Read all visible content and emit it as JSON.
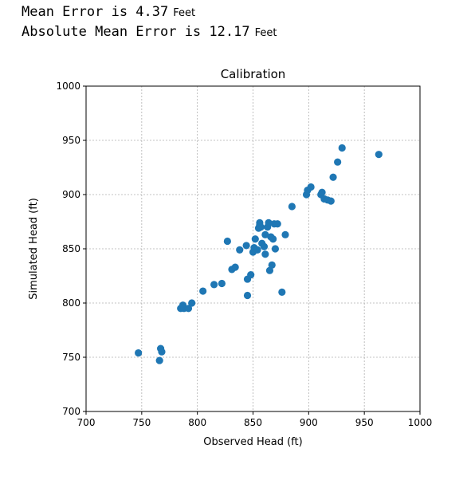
{
  "stats": {
    "mean_error_text": "Mean Error is 4.37",
    "mean_error_unit": "Feet",
    "abs_mean_error_text": "Absolute Mean Error is 12.17",
    "abs_mean_error_unit": "Feet"
  },
  "chart_data": {
    "type": "scatter",
    "title": "Calibration",
    "xlabel": "Observed Head (ft)",
    "ylabel": "Simulated Head (ft)",
    "xlim": [
      700,
      1000
    ],
    "ylim": [
      700,
      1000
    ],
    "xticks": [
      700,
      750,
      800,
      850,
      900,
      950,
      1000
    ],
    "yticks": [
      700,
      750,
      800,
      850,
      900,
      950,
      1000
    ],
    "grid": true,
    "marker_color": "#1f77b4",
    "points": [
      [
        747,
        754
      ],
      [
        766,
        747
      ],
      [
        767,
        758
      ],
      [
        768,
        755
      ],
      [
        785,
        795
      ],
      [
        787,
        798
      ],
      [
        788,
        795
      ],
      [
        792,
        795
      ],
      [
        795,
        800
      ],
      [
        805,
        811
      ],
      [
        815,
        817
      ],
      [
        822,
        818
      ],
      [
        827,
        857
      ],
      [
        831,
        831
      ],
      [
        834,
        833
      ],
      [
        838,
        849
      ],
      [
        844,
        853
      ],
      [
        845,
        807
      ],
      [
        845,
        822
      ],
      [
        848,
        826
      ],
      [
        850,
        847
      ],
      [
        851,
        851
      ],
      [
        852,
        859
      ],
      [
        854,
        849
      ],
      [
        855,
        869
      ],
      [
        856,
        874
      ],
      [
        856,
        872
      ],
      [
        857,
        870
      ],
      [
        858,
        855
      ],
      [
        860,
        852
      ],
      [
        861,
        863
      ],
      [
        861,
        845
      ],
      [
        863,
        870
      ],
      [
        864,
        874
      ],
      [
        865,
        830
      ],
      [
        866,
        861
      ],
      [
        867,
        835
      ],
      [
        868,
        859
      ],
      [
        869,
        873
      ],
      [
        870,
        850
      ],
      [
        872,
        873
      ],
      [
        876,
        810
      ],
      [
        879,
        863
      ],
      [
        885,
        889
      ],
      [
        898,
        900
      ],
      [
        899,
        904
      ],
      [
        902,
        907
      ],
      [
        911,
        900
      ],
      [
        912,
        902
      ],
      [
        914,
        896
      ],
      [
        917,
        895
      ],
      [
        920,
        894
      ],
      [
        922,
        916
      ],
      [
        926,
        930
      ],
      [
        930,
        943
      ],
      [
        963,
        937
      ]
    ]
  }
}
